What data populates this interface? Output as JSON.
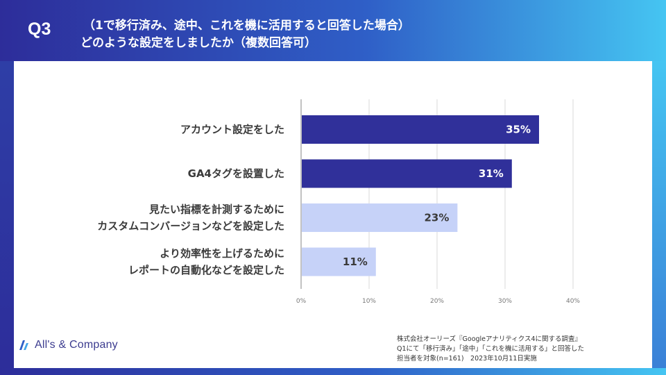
{
  "header": {
    "question": "Q3",
    "title_line1": "（1で移行済み、途中、これを機に活用すると回答した場合）",
    "title_line2": "どのような設定をしましたか（複数回答可）"
  },
  "colors": {
    "bar_dark": "#30309a",
    "bar_light": "#c6d2f8",
    "label_on_dark": "#ffffff",
    "label_on_light": "#3a3a3a",
    "grid": "#d9d9d9",
    "axis": "#999999"
  },
  "chart_data": {
    "type": "bar",
    "orientation": "horizontal",
    "categories": [
      [
        "アカウント設定をした"
      ],
      [
        "GA4タグを設置した"
      ],
      [
        "見たい指標を計測するために",
        "カスタムコンバージョンなどを設定した"
      ],
      [
        "より効率性を上げるために",
        "レポートの自動化などを設定した"
      ]
    ],
    "values": [
      35,
      31,
      23,
      11
    ],
    "value_labels": [
      "35%",
      "31%",
      "23%",
      "11%"
    ],
    "bar_style": [
      "dark",
      "dark",
      "light",
      "light"
    ],
    "xlim": [
      0,
      40
    ],
    "ticks": [
      0,
      10,
      20,
      30,
      40
    ],
    "tick_labels": [
      "0%",
      "10%",
      "20%",
      "30%",
      "40%"
    ],
    "grid": true
  },
  "footer": {
    "logo_text": "All's & Company",
    "source_lines": [
      "株式会社オーリーズ『Googleアナリティクス4に関する調査』",
      "Q1にて「移行済み」「途中」「これを機に活用する」と回答した",
      "担当者を対象(n=161)　2023年10月11日実施"
    ]
  }
}
